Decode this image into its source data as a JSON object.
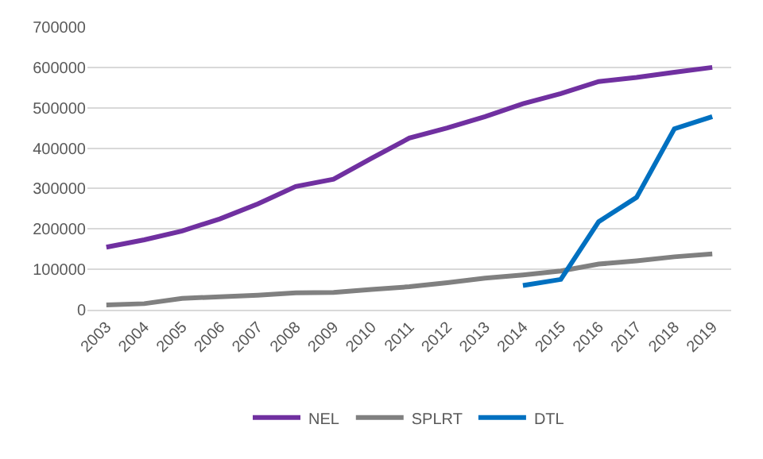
{
  "chart_data": {
    "type": "line",
    "categories": [
      "2003",
      "2004",
      "2005",
      "2006",
      "2007",
      "2008",
      "2009",
      "2010",
      "2011",
      "2012",
      "2013",
      "2014",
      "2015",
      "2016",
      "2017",
      "2018",
      "2019"
    ],
    "series": [
      {
        "name": "NEL",
        "color": "#7030a0",
        "values": [
          155000,
          173000,
          195000,
          225000,
          262000,
          305000,
          323000,
          375000,
          425000,
          450000,
          478000,
          510000,
          535000,
          565000,
          575000,
          588000,
          600000
        ]
      },
      {
        "name": "SPLRT",
        "color": "#808080",
        "values": [
          12000,
          15000,
          28000,
          32000,
          36000,
          42000,
          43000,
          50000,
          57000,
          67000,
          78000,
          86000,
          96000,
          113000,
          121000,
          131000,
          138000
        ]
      },
      {
        "name": "DTL",
        "color": "#0070c0",
        "values": [
          null,
          null,
          null,
          null,
          null,
          null,
          null,
          null,
          null,
          null,
          null,
          60000,
          75000,
          218000,
          278000,
          448000,
          478000
        ]
      }
    ],
    "ylim": [
      0,
      700000
    ],
    "yticks": [
      0,
      100000,
      200000,
      300000,
      400000,
      500000,
      600000,
      700000
    ],
    "grid": "y",
    "legend": "bottom",
    "marker": "none",
    "line_style": "solid"
  }
}
